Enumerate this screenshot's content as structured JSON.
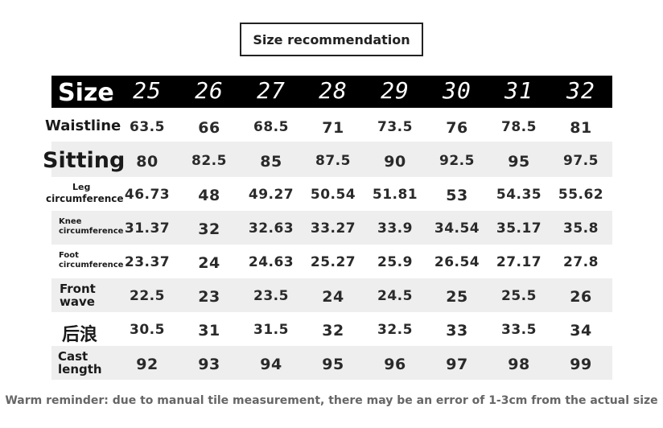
{
  "title": "Size recommendation",
  "header": {
    "label": "Size",
    "sizes": [
      "25",
      "26",
      "27",
      "28",
      "29",
      "30",
      "31",
      "32"
    ]
  },
  "rows": [
    {
      "label": "Waistline",
      "values": [
        "63.5",
        "66",
        "68.5",
        "71",
        "73.5",
        "76",
        "78.5",
        "81"
      ]
    },
    {
      "label": "Sitting",
      "values": [
        "80",
        "82.5",
        "85",
        "87.5",
        "90",
        "92.5",
        "95",
        "97.5"
      ]
    },
    {
      "label_line1": "Leg",
      "label_line2": "circumference",
      "values": [
        "46.73",
        "48",
        "49.27",
        "50.54",
        "51.81",
        "53",
        "54.35",
        "55.62"
      ]
    },
    {
      "label_line1": "Knee",
      "label_line2": "circumference",
      "values": [
        "31.37",
        "32",
        "32.63",
        "33.27",
        "33.9",
        "34.54",
        "35.17",
        "35.8"
      ]
    },
    {
      "label_line1": "Foot",
      "label_line2": "circumference",
      "values": [
        "23.37",
        "24",
        "24.63",
        "25.27",
        "25.9",
        "26.54",
        "27.17",
        "27.8"
      ]
    },
    {
      "label_line1": "Front",
      "label_line2": "wave",
      "values": [
        "22.5",
        "23",
        "23.5",
        "24",
        "24.5",
        "25",
        "25.5",
        "26"
      ]
    },
    {
      "label": "后浪",
      "values": [
        "30.5",
        "31",
        "31.5",
        "32",
        "32.5",
        "33",
        "33.5",
        "34"
      ]
    },
    {
      "label_line1": "Cast",
      "label_line2": "length",
      "values": [
        "92",
        "93",
        "94",
        "95",
        "96",
        "97",
        "98",
        "99"
      ]
    }
  ],
  "footer": "Warm reminder: due to manual tile measurement, there may be an error of 1-3cm from the actual size"
}
